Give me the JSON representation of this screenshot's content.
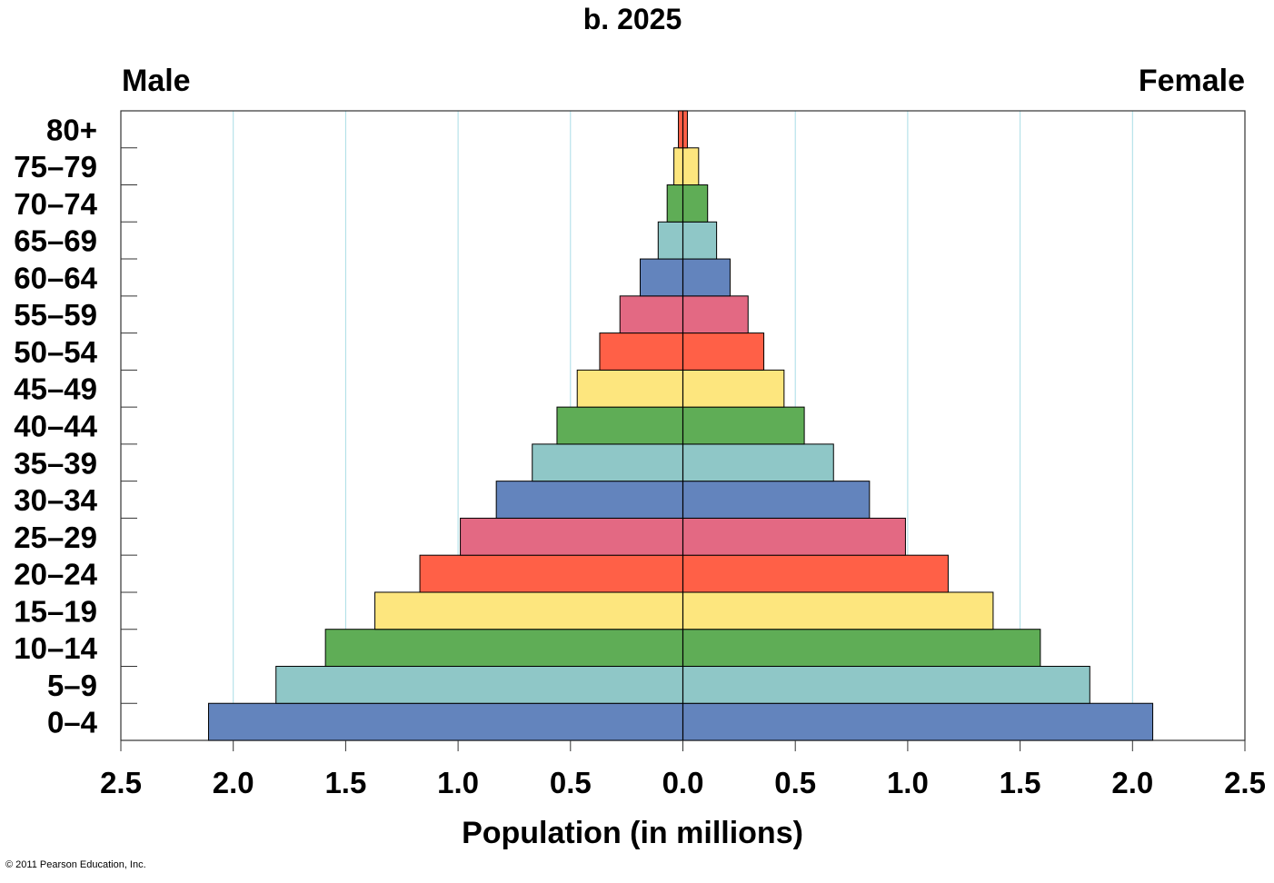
{
  "chart_data": {
    "type": "bar",
    "orientation": "horizontal-population-pyramid",
    "title": "b. 2025",
    "xlabel": "Population (in millions)",
    "ylabel": "",
    "left_label": "Male",
    "right_label": "Female",
    "xlim": [
      0,
      2.5
    ],
    "x_ticks": [
      "2.5",
      "2.0",
      "1.5",
      "1.0",
      "0.5",
      "0.0",
      "0.5",
      "1.0",
      "1.5",
      "2.0",
      "2.5"
    ],
    "grid": true,
    "categories": [
      "0–4",
      "5–9",
      "10–14",
      "15–19",
      "20–24",
      "25–29",
      "30–34",
      "35–39",
      "40–44",
      "45–49",
      "50–54",
      "55–59",
      "60–64",
      "65–69",
      "70–74",
      "75–79",
      "80+"
    ],
    "series": [
      {
        "name": "Male",
        "values": [
          2.11,
          1.81,
          1.59,
          1.37,
          1.17,
          0.99,
          0.83,
          0.67,
          0.56,
          0.47,
          0.37,
          0.28,
          0.19,
          0.11,
          0.07,
          0.04,
          0.02
        ]
      },
      {
        "name": "Female",
        "values": [
          2.09,
          1.81,
          1.59,
          1.38,
          1.18,
          0.99,
          0.83,
          0.67,
          0.54,
          0.45,
          0.36,
          0.29,
          0.21,
          0.15,
          0.11,
          0.07,
          0.02
        ]
      }
    ],
    "colors": [
      "#6384bd",
      "#8fc7c7",
      "#5fad56",
      "#fde67e",
      "#ff6047",
      "#e36983"
    ],
    "copyright": "© 2011 Pearson Education, Inc."
  }
}
